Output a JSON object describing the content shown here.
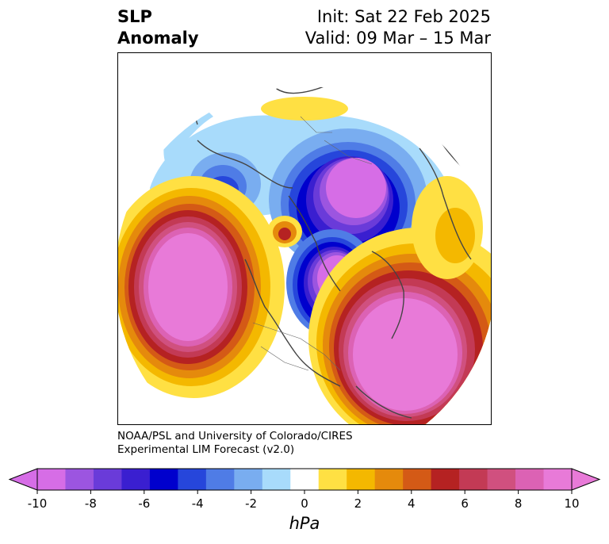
{
  "title": {
    "left_line1": "SLP",
    "left_line2": "Anomaly",
    "right_line1": "Init: Sat 22 Feb 2025",
    "right_line2": "Valid: 09 Mar – 15 Mar"
  },
  "credit": {
    "line1": "NOAA/PSL and University of Colorado/CIRES",
    "line2": "Experimental LIM Forecast (v2.0)"
  },
  "colorbar": {
    "unit_label": "hPa",
    "tick_labels": [
      "-10",
      "-8",
      "-6",
      "-4",
      "-2",
      "0",
      "2",
      "4",
      "6",
      "8",
      "10"
    ],
    "levels": [
      -10,
      -9,
      -8,
      -7,
      -6,
      -5,
      -4,
      -3,
      -2,
      -1,
      1,
      2,
      3,
      4,
      5,
      6,
      7,
      8,
      9,
      10
    ],
    "colors": [
      "#d66de6",
      "#9c55e0",
      "#6a3bd9",
      "#3a1fd0",
      "#0000cd",
      "#2646db",
      "#4f7ce6",
      "#79adf0",
      "#a8dbfb",
      "#ffffff",
      "#ffe043",
      "#f4b800",
      "#e58a0c",
      "#d45a16",
      "#b52222",
      "#c33a55",
      "#d0507f",
      "#dc62b4",
      "#e87ad8"
    ],
    "extend": "both"
  },
  "map": {
    "projection": "north-polar-stereographic",
    "field": "sea level pressure anomaly",
    "features": [
      {
        "sign": "positive",
        "level": 10,
        "where": "North Pacific (Gulf of Alaska)"
      },
      {
        "sign": "positive",
        "level": 10,
        "where": "North Atlantic / eastern North America"
      },
      {
        "sign": "negative",
        "level": -10,
        "where": "Arctic / Siberia"
      },
      {
        "sign": "negative",
        "level": -10,
        "where": "Hudson Bay / Canadian Arctic"
      },
      {
        "sign": "negative",
        "level": -6,
        "where": "Caspian / Central Asia"
      },
      {
        "sign": "positive",
        "level": 5,
        "where": "Bering Sea"
      },
      {
        "sign": "positive",
        "level": 3,
        "where": "Arabian region"
      }
    ]
  }
}
